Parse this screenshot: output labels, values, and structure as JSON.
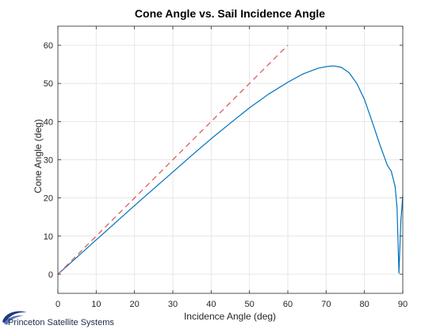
{
  "chart_data": {
    "type": "line",
    "title": "Cone Angle vs. Sail Incidence Angle",
    "xlabel": "Incidence Angle (deg)",
    "ylabel": "Cone Angle (deg)",
    "xlim": [
      0,
      90
    ],
    "ylim": [
      -5,
      65
    ],
    "xticks": [
      0,
      10,
      20,
      30,
      40,
      50,
      60,
      70,
      80,
      90
    ],
    "yticks": [
      0,
      10,
      20,
      30,
      40,
      50,
      60
    ],
    "grid": true,
    "series": [
      {
        "style": "solid",
        "color": "#0072bd",
        "x": [
          0,
          5,
          10,
          15,
          20,
          25,
          30,
          35,
          40,
          45,
          50,
          55,
          60,
          64,
          68,
          70,
          72,
          74,
          76,
          78,
          80,
          82,
          84,
          86,
          87,
          88,
          88.5,
          89,
          89.5,
          90
        ],
        "y": [
          0,
          4.5,
          9,
          13.5,
          18,
          22.4,
          26.8,
          31.2,
          35.5,
          39.6,
          43.6,
          47.2,
          50.3,
          52.5,
          54.0,
          54.4,
          54.6,
          54.2,
          52.8,
          50.0,
          45.8,
          40.0,
          34.0,
          28.5,
          27.0,
          23.0,
          17.5,
          0.3,
          14.0,
          20.5
        ]
      },
      {
        "style": "dashed",
        "color": "#d9534f",
        "x": [
          0,
          60
        ],
        "y": [
          0,
          60
        ]
      }
    ]
  },
  "branding": {
    "company_name": "Princeton Satellite Systems"
  }
}
